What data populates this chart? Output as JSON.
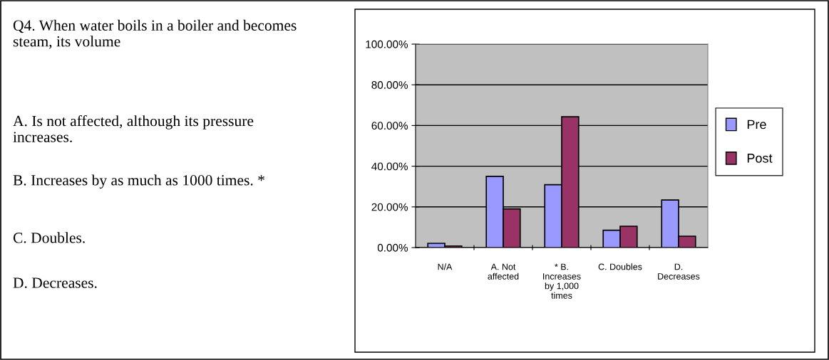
{
  "chart_data": {
    "type": "bar",
    "categories": [
      "N/A",
      "A. Not\naffected",
      "* B.\nIncreases\nby 1,000\ntimes",
      "C. Doubles",
      "D.\nDecreases"
    ],
    "series": [
      {
        "name": "Pre",
        "color": "#9999ff",
        "values": [
          2.1,
          35.0,
          30.9,
          8.5,
          23.4
        ]
      },
      {
        "name": "Post",
        "color": "#993366",
        "values": [
          0.8,
          19.0,
          64.3,
          10.5,
          5.6
        ]
      }
    ],
    "ylim": [
      0,
      100
    ],
    "yticks": [
      {
        "value": 0,
        "label": "0.00%"
      },
      {
        "value": 20,
        "label": "20.00%"
      },
      {
        "value": 40,
        "label": "40.00%"
      },
      {
        "value": 60,
        "label": "60.00%"
      },
      {
        "value": 80,
        "label": "80.00%"
      },
      {
        "value": 100,
        "label": "100.00%"
      }
    ],
    "grid": "y",
    "legend": "right",
    "annotations": [
      "Q4. When water boils in a boiler and becomes steam, its volume",
      "A. Is not affected, although its pressure increases.",
      "B. Increases by as much as 1000 times. *",
      "C. Doubles.",
      "D. Decreases."
    ]
  }
}
